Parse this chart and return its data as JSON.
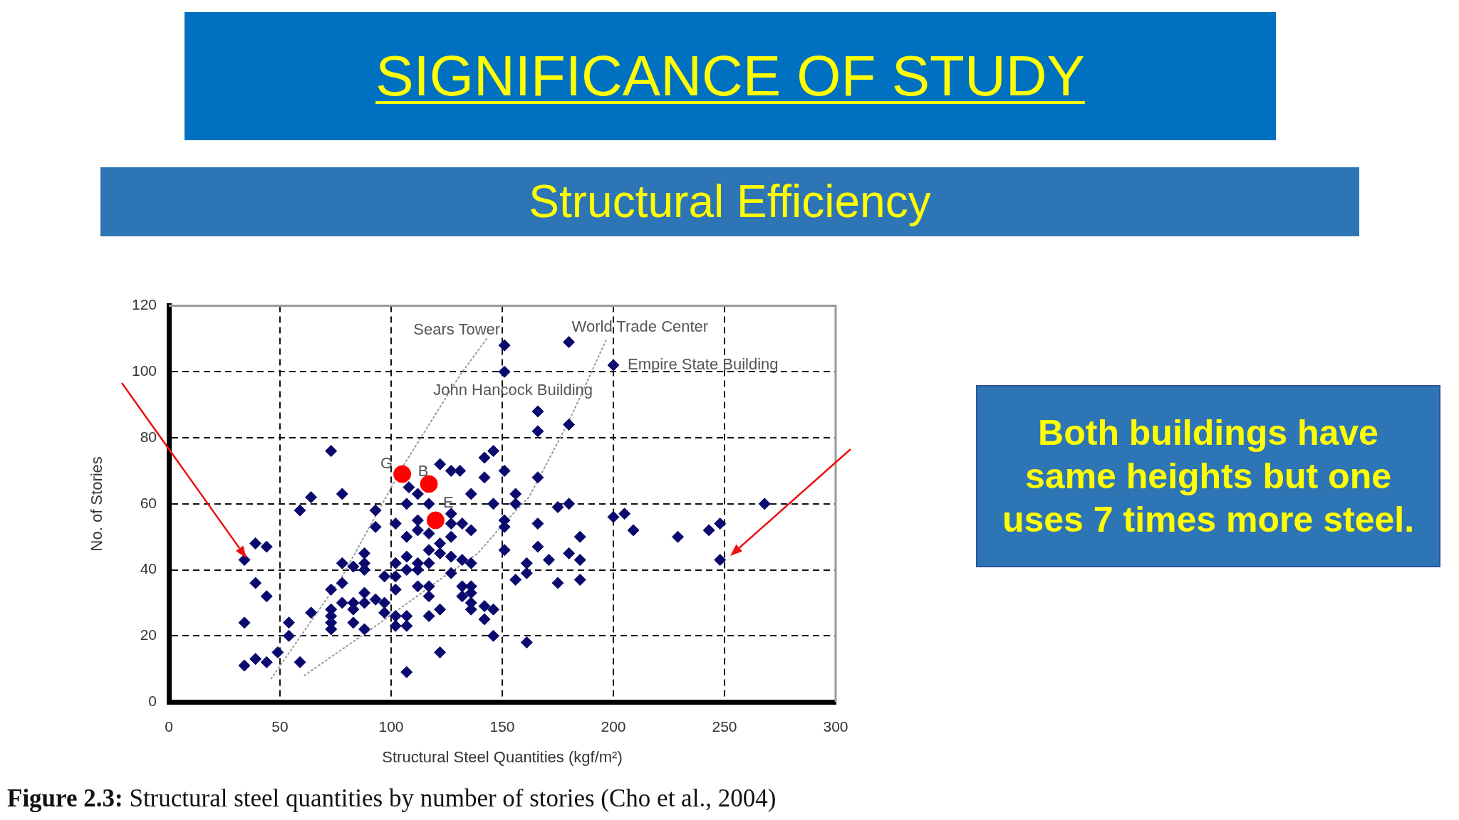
{
  "chart_data": {
    "type": "scatter",
    "title": "SIGNIFICANCE OF STUDY",
    "subtitle": "Structural Efficiency",
    "xlabel": "Structural Steel Quantities (kgf/m²)",
    "ylabel": "No. of Stories",
    "xlim": [
      0,
      300
    ],
    "xticks": [
      0,
      50,
      100,
      150,
      200,
      250,
      300
    ],
    "ylim": [
      0,
      120
    ],
    "yticks": [
      0,
      20,
      40,
      60,
      80,
      100,
      120
    ],
    "grid": true,
    "marker": "diamond",
    "series": [
      {
        "color": "#0a0a6e",
        "x": [
          34,
          39,
          44,
          39,
          44,
          34,
          34,
          39,
          44,
          49,
          54,
          54,
          59,
          64,
          59,
          64,
          73,
          78,
          73,
          73,
          73,
          73,
          73,
          78,
          78,
          78,
          83,
          83,
          83,
          83,
          88,
          88,
          88,
          88,
          88,
          88,
          93,
          93,
          93,
          97,
          97,
          97,
          102,
          102,
          102,
          102,
          102,
          102,
          107,
          107,
          107,
          107,
          107,
          107,
          107,
          108,
          112,
          112,
          112,
          112,
          112,
          112,
          117,
          117,
          117,
          117,
          117,
          117,
          117,
          122,
          122,
          122,
          122,
          122,
          127,
          127,
          127,
          127,
          127,
          127,
          131,
          132,
          132,
          132,
          132,
          136,
          136,
          136,
          136,
          136,
          136,
          136,
          142,
          142,
          142,
          142,
          146,
          146,
          146,
          146,
          151,
          151,
          151,
          151,
          151,
          151,
          156,
          156,
          156,
          161,
          161,
          161,
          166,
          166,
          166,
          166,
          166,
          171,
          175,
          175,
          180,
          180,
          180,
          180,
          185,
          185,
          185,
          200,
          200,
          205,
          209,
          229,
          243,
          248,
          248,
          268
        ],
        "values": [
          43,
          48,
          47,
          36,
          32,
          24,
          11,
          13,
          12,
          15,
          24,
          20,
          12,
          27,
          58,
          62,
          76,
          63,
          34,
          28,
          26,
          24,
          22,
          42,
          36,
          30,
          41,
          30,
          28,
          24,
          45,
          42,
          40,
          33,
          30,
          22,
          58,
          53,
          31,
          38,
          30,
          27,
          54,
          42,
          38,
          34,
          26,
          23,
          60,
          50,
          44,
          40,
          26,
          23,
          9,
          65,
          63,
          55,
          52,
          42,
          40,
          35,
          60,
          51,
          46,
          42,
          35,
          32,
          26,
          72,
          48,
          45,
          28,
          15,
          70,
          57,
          54,
          50,
          44,
          39,
          70,
          54,
          43,
          35,
          32,
          63,
          52,
          42,
          35,
          33,
          30,
          28,
          74,
          68,
          29,
          25,
          76,
          60,
          28,
          20,
          108,
          100,
          70,
          55,
          53,
          46,
          63,
          60,
          37,
          42,
          39,
          18,
          88,
          82,
          68,
          54,
          47,
          43,
          59,
          36,
          109,
          84,
          60,
          45,
          50,
          43,
          37,
          102,
          56,
          57,
          52,
          50,
          52,
          54,
          43,
          60
        ]
      },
      {
        "color": "#ff0000",
        "marker": "circle",
        "x": [
          105,
          117,
          120
        ],
        "values": [
          69,
          66,
          55
        ]
      },
      {
        "type": "line",
        "color": "#9a9a9a",
        "marker": "none",
        "line_style": "dotted",
        "x": [
          46,
          78,
          105,
          131,
          143
        ],
        "values": [
          7,
          38,
          71,
          99,
          110
        ]
      },
      {
        "type": "line",
        "color": "#9a9a9a",
        "marker": "none",
        "line_style": "dotted",
        "x": [
          61,
          91,
          124,
          139,
          152,
          162,
          180,
          197
        ],
        "values": [
          8,
          22,
          38,
          45,
          55,
          62,
          85,
          110
        ]
      }
    ],
    "annotations": [
      "Both buildings have same heights but one uses 7 times more steel.",
      "Figure 2.3: Structural steel quantities by number of stories (Cho et al., 2004)",
      {
        "text": "Sears Tower",
        "x": 151,
        "y": 108
      },
      {
        "text": "World Trade Center",
        "x": 180,
        "y": 109
      },
      {
        "text": "Empire State Building",
        "x": 200,
        "y": 102
      },
      {
        "text": "John Hancock Building",
        "x": 151,
        "y": 100
      },
      {
        "text": "G",
        "x": 105,
        "y": 69
      },
      {
        "text": "B",
        "x": 117,
        "y": 66
      },
      {
        "text": "E",
        "x": 120,
        "y": 55
      }
    ]
  }
}
